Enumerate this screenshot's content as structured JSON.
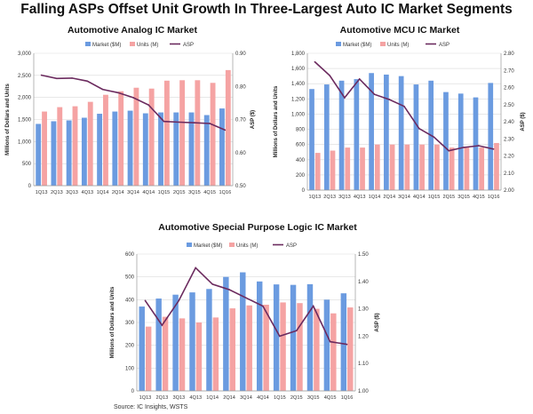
{
  "title": "Falling ASPs Offset Unit Growth In Three-Largest Auto IC Market Segments",
  "source": "Source:  IC Insights, WSTS",
  "colors": {
    "market": "#6b9be0",
    "units": "#f5a3a3",
    "asp": "#6b2a5e"
  },
  "chart_data": [
    {
      "type": "bar",
      "title": "Automotive Analog IC Market",
      "legend": [
        "Market ($M)",
        "Units (M)",
        "ASP"
      ],
      "ylabel": "Millions of Dollars and Units",
      "y2label": "ASP ($)",
      "categories": [
        "1Q13",
        "2Q13",
        "3Q13",
        "4Q13",
        "1Q14",
        "2Q14",
        "3Q14",
        "4Q14",
        "1Q15",
        "2Q15",
        "3Q15",
        "4Q15",
        "1Q16"
      ],
      "ylim": [
        0,
        3000
      ],
      "yticks": [
        "0",
        "500",
        "1,000",
        "1,500",
        "2,000",
        "2,500",
        "3,000"
      ],
      "y2lim": [
        0.5,
        0.9
      ],
      "y2ticks": [
        "0.50",
        "0.60",
        "0.70",
        "0.80",
        "0.90"
      ],
      "series": [
        {
          "name": "Market ($M)",
          "values": [
            1400,
            1460,
            1480,
            1540,
            1630,
            1680,
            1700,
            1640,
            1660,
            1660,
            1660,
            1600,
            1750
          ]
        },
        {
          "name": "Units (M)",
          "values": [
            1680,
            1780,
            1800,
            1900,
            2060,
            2140,
            2220,
            2200,
            2380,
            2390,
            2390,
            2330,
            2620
          ]
        },
        {
          "name": "ASP",
          "values": [
            0.834,
            0.824,
            0.825,
            0.816,
            0.791,
            0.781,
            0.766,
            0.744,
            0.694,
            0.692,
            0.69,
            0.688,
            0.668
          ]
        }
      ]
    },
    {
      "type": "bar",
      "title": "Automotive MCU IC Market",
      "legend": [
        "Market ($M)",
        "Units (M)",
        "ASP"
      ],
      "ylabel": "Millions of Dollars and Units",
      "y2label": "ASP ($)",
      "categories": [
        "1Q13",
        "2Q13",
        "3Q13",
        "4Q13",
        "1Q14",
        "2Q14",
        "3Q14",
        "4Q14",
        "1Q15",
        "2Q15",
        "3Q15",
        "4Q15",
        "1Q16"
      ],
      "ylim": [
        0,
        1800
      ],
      "yticks": [
        "0",
        "200",
        "400",
        "600",
        "800",
        "1,000",
        "1,200",
        "1,400",
        "1,600",
        "1,800"
      ],
      "y2lim": [
        2.0,
        2.8
      ],
      "y2ticks": [
        "2.00",
        "2.10",
        "2.20",
        "2.30",
        "2.40",
        "2.50",
        "2.60",
        "2.70",
        "2.80"
      ],
      "series": [
        {
          "name": "Market ($M)",
          "values": [
            1330,
            1390,
            1440,
            1460,
            1540,
            1520,
            1500,
            1390,
            1440,
            1290,
            1270,
            1220,
            1410
          ]
        },
        {
          "name": "Units (M)",
          "values": [
            490,
            520,
            560,
            560,
            600,
            600,
            600,
            600,
            600,
            560,
            560,
            560,
            620
          ]
        },
        {
          "name": "ASP",
          "values": [
            2.75,
            2.67,
            2.54,
            2.65,
            2.56,
            2.53,
            2.49,
            2.36,
            2.31,
            2.23,
            2.25,
            2.26,
            2.24
          ]
        }
      ]
    },
    {
      "type": "bar",
      "title": "Automotive Special Purpose Logic IC Market",
      "legend": [
        "Market ($M)",
        "Units (M)",
        "ASP"
      ],
      "ylabel": "Millions of Dollars and Units",
      "y2label": "ASP ($)",
      "categories": [
        "1Q13",
        "2Q13",
        "3Q13",
        "4Q13",
        "1Q14",
        "2Q14",
        "3Q14",
        "4Q14",
        "1Q15",
        "2Q15",
        "3Q15",
        "4Q15",
        "1Q16"
      ],
      "ylim": [
        0,
        600
      ],
      "yticks": [
        "0",
        "100",
        "200",
        "300",
        "400",
        "500",
        "600"
      ],
      "y2lim": [
        1.0,
        1.5
      ],
      "y2ticks": [
        "1.00",
        "1.10",
        "1.20",
        "1.30",
        "1.40",
        "1.50"
      ],
      "series": [
        {
          "name": "Market ($M)",
          "values": [
            370,
            405,
            422,
            432,
            447,
            500,
            520,
            480,
            467,
            465,
            468,
            400,
            428
          ]
        },
        {
          "name": "Units (M)",
          "values": [
            282,
            325,
            318,
            300,
            322,
            362,
            375,
            378,
            388,
            385,
            360,
            340,
            366
          ]
        },
        {
          "name": "ASP",
          "values": [
            1.33,
            1.24,
            1.33,
            1.45,
            1.39,
            1.37,
            1.34,
            1.31,
            1.2,
            1.22,
            1.31,
            1.18,
            1.17
          ]
        }
      ]
    }
  ]
}
